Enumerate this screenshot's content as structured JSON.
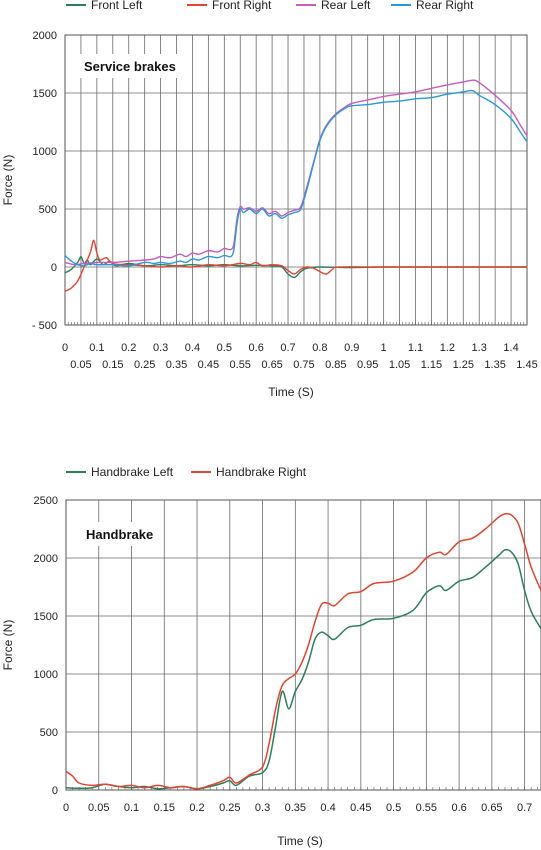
{
  "chart_data": [
    {
      "type": "line",
      "title": "Service brakes",
      "xlabel": "Time (S)",
      "ylabel": "Force (N)",
      "xlim": [
        0,
        1.45
      ],
      "ylim": [
        -500,
        2000
      ],
      "grid": true,
      "legend_position": "top",
      "x_ticks_row1": [
        "0",
        "0.1",
        "0.2",
        "0.3",
        "0.4",
        "0.5",
        "0.6",
        "0.7",
        "0.8",
        "0.9",
        "1",
        "1.1",
        "1.2",
        "1.3",
        "1.4"
      ],
      "x_ticks_row2": [
        "0.05",
        "0.15",
        "0.25",
        "0.35",
        "0.45",
        "0.55",
        "0.65",
        "0.75",
        "0.85",
        "0.95",
        "1.05",
        "1.15",
        "1.25",
        "1.35",
        "1.45"
      ],
      "y_ticks": [
        "2000",
        "1500",
        "1000",
        "500",
        "0",
        "- 500"
      ],
      "series": [
        {
          "name": "Front Left",
          "color": "#2e7d5b",
          "points": [
            [
              0,
              -50
            ],
            [
              0.02,
              -20
            ],
            [
              0.04,
              40
            ],
            [
              0.05,
              90
            ],
            [
              0.06,
              30
            ],
            [
              0.07,
              60
            ],
            [
              0.08,
              20
            ],
            [
              0.1,
              70
            ],
            [
              0.12,
              20
            ],
            [
              0.14,
              50
            ],
            [
              0.16,
              10
            ],
            [
              0.2,
              30
            ],
            [
              0.25,
              10
            ],
            [
              0.3,
              20
            ],
            [
              0.35,
              10
            ],
            [
              0.4,
              20
            ],
            [
              0.45,
              10
            ],
            [
              0.5,
              20
            ],
            [
              0.55,
              10
            ],
            [
              0.6,
              15
            ],
            [
              0.65,
              10
            ],
            [
              0.68,
              0
            ],
            [
              0.7,
              -60
            ],
            [
              0.72,
              -90
            ],
            [
              0.74,
              -40
            ],
            [
              0.76,
              -10
            ],
            [
              0.8,
              0
            ],
            [
              0.9,
              -5
            ],
            [
              1.0,
              0
            ],
            [
              1.2,
              0
            ],
            [
              1.45,
              0
            ]
          ]
        },
        {
          "name": "Front Right",
          "color": "#e0452f",
          "points": [
            [
              0,
              -210
            ],
            [
              0.02,
              -180
            ],
            [
              0.04,
              -120
            ],
            [
              0.06,
              0
            ],
            [
              0.08,
              130
            ],
            [
              0.09,
              230
            ],
            [
              0.1,
              120
            ],
            [
              0.11,
              60
            ],
            [
              0.13,
              80
            ],
            [
              0.15,
              30
            ],
            [
              0.2,
              20
            ],
            [
              0.25,
              10
            ],
            [
              0.3,
              0
            ],
            [
              0.35,
              10
            ],
            [
              0.4,
              0
            ],
            [
              0.45,
              20
            ],
            [
              0.5,
              10
            ],
            [
              0.55,
              30
            ],
            [
              0.58,
              20
            ],
            [
              0.6,
              40
            ],
            [
              0.62,
              10
            ],
            [
              0.65,
              20
            ],
            [
              0.68,
              10
            ],
            [
              0.7,
              -30
            ],
            [
              0.72,
              -60
            ],
            [
              0.74,
              -20
            ],
            [
              0.76,
              0
            ],
            [
              0.78,
              -10
            ],
            [
              0.8,
              -40
            ],
            [
              0.82,
              -60
            ],
            [
              0.84,
              -20
            ],
            [
              0.86,
              0
            ],
            [
              1.0,
              0
            ],
            [
              1.2,
              0
            ],
            [
              1.45,
              0
            ]
          ]
        },
        {
          "name": "Rear Left",
          "color": "#c85bbf",
          "points": [
            [
              0,
              40
            ],
            [
              0.03,
              20
            ],
            [
              0.06,
              30
            ],
            [
              0.1,
              40
            ],
            [
              0.15,
              40
            ],
            [
              0.2,
              50
            ],
            [
              0.25,
              60
            ],
            [
              0.28,
              70
            ],
            [
              0.3,
              90
            ],
            [
              0.33,
              80
            ],
            [
              0.36,
              110
            ],
            [
              0.38,
              90
            ],
            [
              0.4,
              120
            ],
            [
              0.42,
              110
            ],
            [
              0.45,
              140
            ],
            [
              0.48,
              130
            ],
            [
              0.5,
              160
            ],
            [
              0.52,
              150
            ],
            [
              0.53,
              200
            ],
            [
              0.54,
              420
            ],
            [
              0.55,
              520
            ],
            [
              0.56,
              500
            ],
            [
              0.58,
              510
            ],
            [
              0.6,
              480
            ],
            [
              0.62,
              510
            ],
            [
              0.64,
              460
            ],
            [
              0.66,
              480
            ],
            [
              0.68,
              440
            ],
            [
              0.7,
              470
            ],
            [
              0.72,
              490
            ],
            [
              0.74,
              520
            ],
            [
              0.76,
              700
            ],
            [
              0.78,
              900
            ],
            [
              0.8,
              1100
            ],
            [
              0.82,
              1220
            ],
            [
              0.85,
              1320
            ],
            [
              0.88,
              1380
            ],
            [
              0.9,
              1410
            ],
            [
              0.95,
              1440
            ],
            [
              1.0,
              1470
            ],
            [
              1.05,
              1490
            ],
            [
              1.1,
              1510
            ],
            [
              1.15,
              1540
            ],
            [
              1.2,
              1570
            ],
            [
              1.25,
              1595
            ],
            [
              1.28,
              1610
            ],
            [
              1.3,
              1590
            ],
            [
              1.35,
              1480
            ],
            [
              1.4,
              1350
            ],
            [
              1.43,
              1220
            ],
            [
              1.45,
              1130
            ]
          ]
        },
        {
          "name": "Rear Right",
          "color": "#2a98d8",
          "points": [
            [
              0,
              100
            ],
            [
              0.02,
              50
            ],
            [
              0.04,
              20
            ],
            [
              0.06,
              10
            ],
            [
              0.08,
              30
            ],
            [
              0.1,
              20
            ],
            [
              0.15,
              20
            ],
            [
              0.2,
              10
            ],
            [
              0.25,
              40
            ],
            [
              0.28,
              30
            ],
            [
              0.3,
              40
            ],
            [
              0.33,
              30
            ],
            [
              0.36,
              50
            ],
            [
              0.38,
              40
            ],
            [
              0.4,
              70
            ],
            [
              0.42,
              60
            ],
            [
              0.45,
              90
            ],
            [
              0.48,
              80
            ],
            [
              0.5,
              100
            ],
            [
              0.52,
              90
            ],
            [
              0.53,
              150
            ],
            [
              0.54,
              380
            ],
            [
              0.55,
              500
            ],
            [
              0.56,
              470
            ],
            [
              0.58,
              500
            ],
            [
              0.6,
              460
            ],
            [
              0.62,
              500
            ],
            [
              0.64,
              440
            ],
            [
              0.66,
              460
            ],
            [
              0.68,
              420
            ],
            [
              0.7,
              450
            ],
            [
              0.72,
              470
            ],
            [
              0.74,
              500
            ],
            [
              0.76,
              680
            ],
            [
              0.78,
              890
            ],
            [
              0.8,
              1090
            ],
            [
              0.82,
              1210
            ],
            [
              0.85,
              1310
            ],
            [
              0.88,
              1370
            ],
            [
              0.9,
              1390
            ],
            [
              0.95,
              1400
            ],
            [
              1.0,
              1420
            ],
            [
              1.05,
              1430
            ],
            [
              1.1,
              1450
            ],
            [
              1.15,
              1460
            ],
            [
              1.2,
              1490
            ],
            [
              1.25,
              1510
            ],
            [
              1.28,
              1520
            ],
            [
              1.3,
              1480
            ],
            [
              1.35,
              1400
            ],
            [
              1.4,
              1280
            ],
            [
              1.43,
              1160
            ],
            [
              1.45,
              1080
            ]
          ]
        }
      ]
    },
    {
      "type": "line",
      "title": "Handbrake",
      "xlabel": "Time (S)",
      "ylabel": "Force (N)",
      "xlim": [
        0,
        0.725
      ],
      "ylim": [
        0,
        2500
      ],
      "grid": true,
      "legend_position": "top",
      "x_ticks": [
        "0",
        "0.05",
        "0.1",
        "0.15",
        "0.2",
        "0.25",
        "0.3",
        "0.35",
        "0.4",
        "0.45",
        "0.5",
        "0.55",
        "0.6",
        "0.65",
        "0.7"
      ],
      "y_ticks": [
        "2500",
        "2000",
        "1500",
        "1000",
        "500",
        "0"
      ],
      "series": [
        {
          "name": "Handbrake Left",
          "color": "#2e7d5b",
          "points": [
            [
              0,
              20
            ],
            [
              0.02,
              15
            ],
            [
              0.04,
              20
            ],
            [
              0.06,
              50
            ],
            [
              0.08,
              30
            ],
            [
              0.1,
              20
            ],
            [
              0.12,
              30
            ],
            [
              0.14,
              10
            ],
            [
              0.16,
              20
            ],
            [
              0.18,
              30
            ],
            [
              0.2,
              10
            ],
            [
              0.22,
              30
            ],
            [
              0.24,
              60
            ],
            [
              0.25,
              80
            ],
            [
              0.26,
              40
            ],
            [
              0.28,
              120
            ],
            [
              0.3,
              150
            ],
            [
              0.31,
              250
            ],
            [
              0.32,
              550
            ],
            [
              0.33,
              850
            ],
            [
              0.34,
              700
            ],
            [
              0.35,
              850
            ],
            [
              0.36,
              950
            ],
            [
              0.37,
              1100
            ],
            [
              0.38,
              1300
            ],
            [
              0.39,
              1360
            ],
            [
              0.4,
              1330
            ],
            [
              0.41,
              1300
            ],
            [
              0.43,
              1400
            ],
            [
              0.45,
              1420
            ],
            [
              0.47,
              1470
            ],
            [
              0.5,
              1480
            ],
            [
              0.53,
              1550
            ],
            [
              0.55,
              1700
            ],
            [
              0.57,
              1760
            ],
            [
              0.58,
              1720
            ],
            [
              0.6,
              1800
            ],
            [
              0.62,
              1830
            ],
            [
              0.64,
              1920
            ],
            [
              0.66,
              2020
            ],
            [
              0.67,
              2070
            ],
            [
              0.68,
              2050
            ],
            [
              0.69,
              1950
            ],
            [
              0.7,
              1720
            ],
            [
              0.71,
              1540
            ],
            [
              0.725,
              1390
            ]
          ]
        },
        {
          "name": "Handbrake Right",
          "color": "#e0452f",
          "points": [
            [
              0,
              160
            ],
            [
              0.01,
              120
            ],
            [
              0.02,
              60
            ],
            [
              0.04,
              40
            ],
            [
              0.06,
              50
            ],
            [
              0.08,
              30
            ],
            [
              0.1,
              40
            ],
            [
              0.12,
              20
            ],
            [
              0.14,
              40
            ],
            [
              0.16,
              20
            ],
            [
              0.18,
              30
            ],
            [
              0.2,
              10
            ],
            [
              0.22,
              40
            ],
            [
              0.24,
              80
            ],
            [
              0.25,
              110
            ],
            [
              0.26,
              60
            ],
            [
              0.28,
              130
            ],
            [
              0.3,
              200
            ],
            [
              0.31,
              400
            ],
            [
              0.32,
              700
            ],
            [
              0.33,
              900
            ],
            [
              0.34,
              960
            ],
            [
              0.35,
              1000
            ],
            [
              0.36,
              1100
            ],
            [
              0.37,
              1250
            ],
            [
              0.38,
              1450
            ],
            [
              0.39,
              1600
            ],
            [
              0.4,
              1610
            ],
            [
              0.41,
              1590
            ],
            [
              0.43,
              1690
            ],
            [
              0.45,
              1710
            ],
            [
              0.47,
              1780
            ],
            [
              0.5,
              1800
            ],
            [
              0.53,
              1880
            ],
            [
              0.55,
              2000
            ],
            [
              0.57,
              2050
            ],
            [
              0.58,
              2030
            ],
            [
              0.6,
              2140
            ],
            [
              0.62,
              2170
            ],
            [
              0.64,
              2250
            ],
            [
              0.66,
              2350
            ],
            [
              0.67,
              2380
            ],
            [
              0.68,
              2370
            ],
            [
              0.69,
              2300
            ],
            [
              0.7,
              2120
            ],
            [
              0.71,
              1920
            ],
            [
              0.725,
              1720
            ]
          ]
        }
      ]
    }
  ]
}
